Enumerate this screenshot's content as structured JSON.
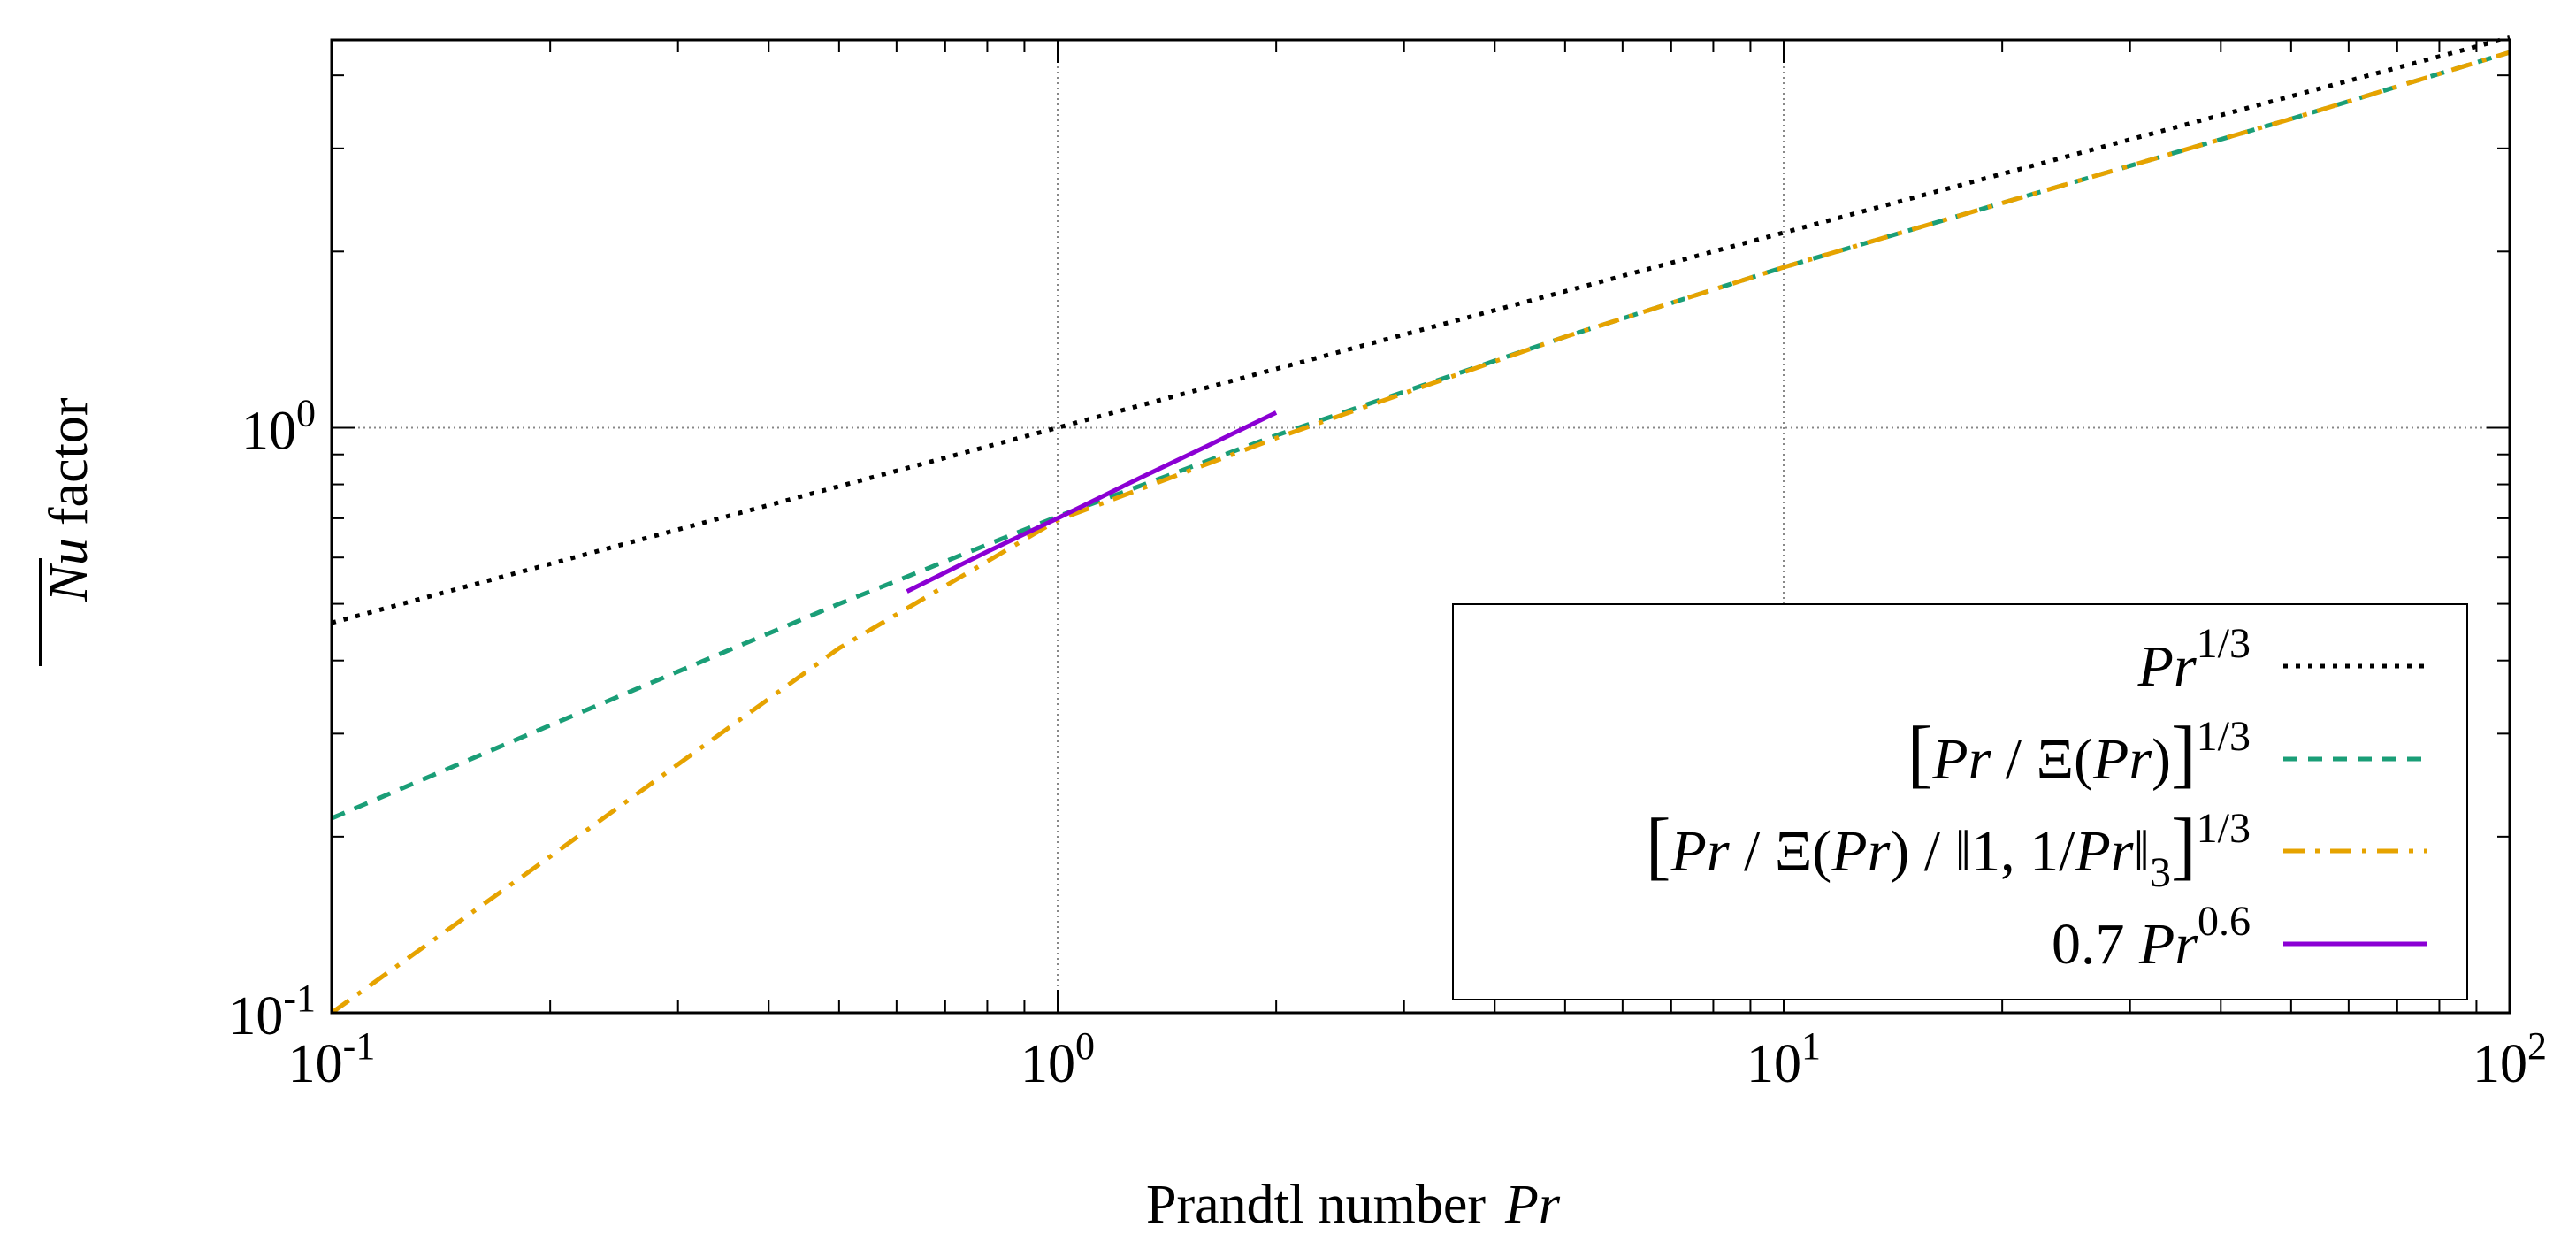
{
  "chart_data": {
    "type": "line",
    "scale": {
      "x": "log",
      "y": "log"
    },
    "xlim": [
      0.1,
      100
    ],
    "ylim": [
      0.1,
      4.6
    ],
    "grid": true,
    "legend_position": "bottom-right",
    "xlabel": {
      "text": "Prandtl number",
      "symbol": "Pr"
    },
    "ylabel": {
      "symbol": "Nu",
      "text": "factor"
    },
    "x_ticks": [
      {
        "value": 0.1,
        "base": "10",
        "exp": "-1"
      },
      {
        "value": 1,
        "base": "10",
        "exp": "0"
      },
      {
        "value": 10,
        "base": "10",
        "exp": "1"
      },
      {
        "value": 100,
        "base": "10",
        "exp": "2"
      }
    ],
    "y_ticks": [
      {
        "value": 0.1,
        "base": "10",
        "exp": "-1"
      },
      {
        "value": 1,
        "base": "10",
        "exp": "0"
      }
    ],
    "series": [
      {
        "name": "Pr^(1/3)",
        "color": "#000000",
        "style": "dotted",
        "x": [
          0.1,
          0.2,
          0.5,
          1,
          2,
          5,
          10,
          20,
          50,
          100
        ],
        "y": [
          0.464,
          0.585,
          0.794,
          1.0,
          1.26,
          1.71,
          2.154,
          2.714,
          3.684,
          4.642
        ]
      },
      {
        "name": "[Pr / Ξ(Pr)]^(1/3)",
        "color": "#1a9e77",
        "style": "dashed",
        "x": [
          0.1,
          0.2,
          0.5,
          1,
          2,
          5,
          10,
          20,
          50,
          100
        ],
        "y": [
          0.215,
          0.31,
          0.5,
          0.705,
          0.97,
          1.43,
          1.88,
          2.42,
          3.37,
          4.38
        ]
      },
      {
        "name": "[Pr / Ξ(Pr) / ‖1, 1/Pr‖₃]^(1/3)",
        "color": "#e6a300",
        "style": "dashdot",
        "x": [
          0.1,
          0.2,
          0.5,
          1,
          2,
          5,
          10,
          20,
          50,
          100
        ],
        "y": [
          0.1,
          0.185,
          0.42,
          0.695,
          0.96,
          1.43,
          1.88,
          2.42,
          3.37,
          4.38
        ]
      },
      {
        "name": "0.7 Pr^0.6",
        "color": "#8b00d4",
        "style": "solid",
        "x": [
          0.62,
          0.8,
          1,
          1.3,
          1.6,
          2.0
        ],
        "y": [
          0.525,
          0.614,
          0.7,
          0.821,
          0.928,
          1.061
        ]
      }
    ],
    "legend": [
      {
        "id": "pr13",
        "parts": [
          {
            "t": "Pr",
            "i": true
          },
          {
            "t": "1/3",
            "sup": true
          }
        ]
      },
      {
        "id": "prxi",
        "parts": [
          {
            "t": "[",
            "br": true
          },
          {
            "t": "Pr",
            "i": true
          },
          {
            "t": " / Ξ("
          },
          {
            "t": "Pr",
            "i": true
          },
          {
            "t": ")"
          },
          {
            "t": "]",
            "br": true
          },
          {
            "t": "1/3",
            "sup": true
          }
        ]
      },
      {
        "id": "prxinorm",
        "parts": [
          {
            "t": "[",
            "br": true
          },
          {
            "t": "Pr",
            "i": true
          },
          {
            "t": " / Ξ("
          },
          {
            "t": "Pr",
            "i": true
          },
          {
            "t": ") / ‖1, 1/"
          },
          {
            "t": "Pr",
            "i": true
          },
          {
            "t": "‖"
          },
          {
            "t": "3",
            "sub": true
          },
          {
            "t": "]",
            "br": true
          },
          {
            "t": "1/3",
            "sup": true
          }
        ]
      },
      {
        "id": "pr06",
        "parts": [
          {
            "t": "0.7 "
          },
          {
            "t": "Pr",
            "i": true
          },
          {
            "t": "0.6",
            "sup": true
          }
        ]
      }
    ]
  }
}
